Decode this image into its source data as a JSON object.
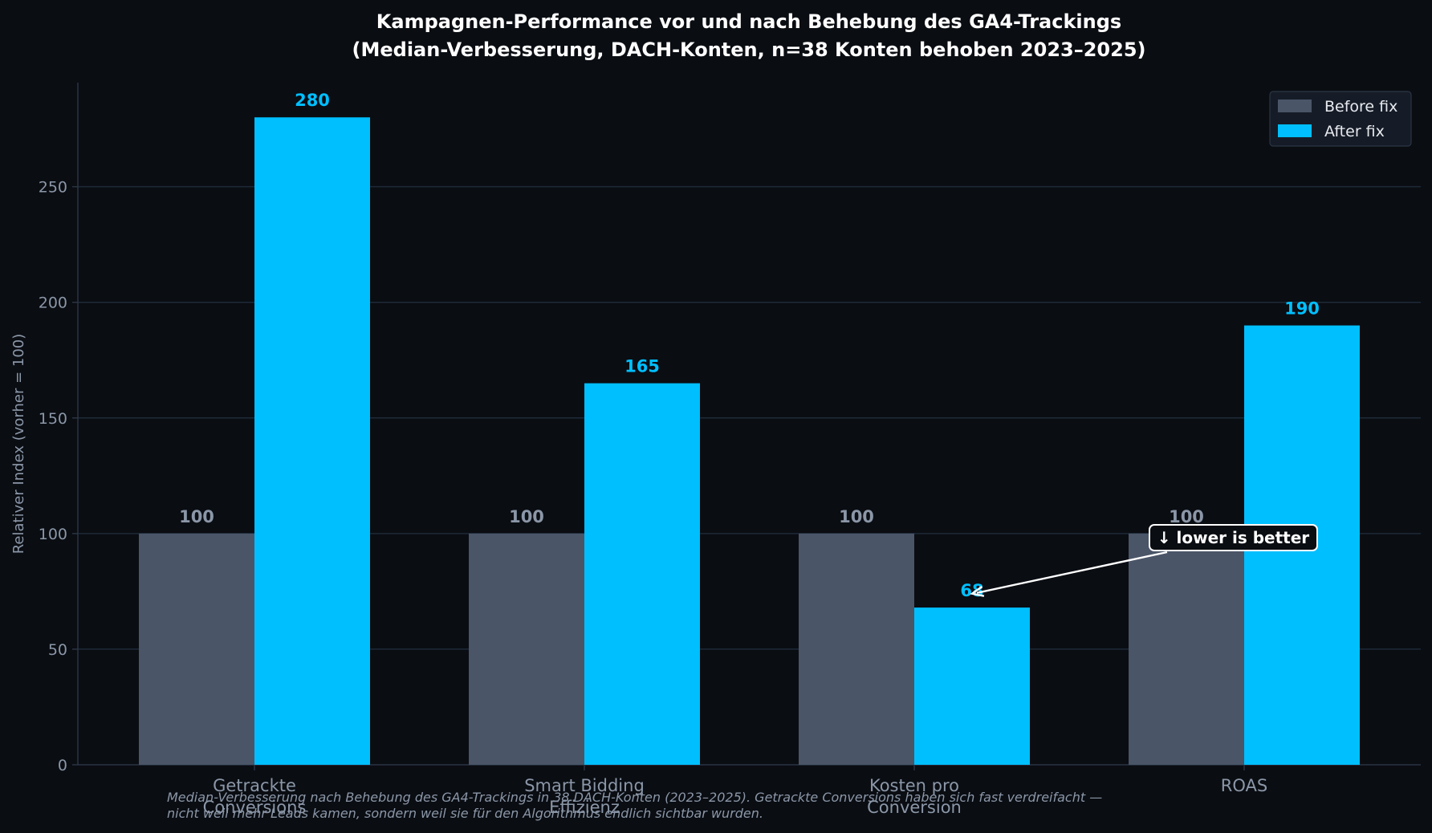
{
  "chart_data": {
    "type": "bar",
    "title_line1": "Kampagnen-Performance vor und nach Behebung des GA4-Trackings",
    "title_line2": "(Median-Verbesserung, DACH-Konten, n=38 Konten behoben 2023–2025)",
    "ylabel": "Relativer Index (vorher = 100)",
    "xlabel": "",
    "ylim": [
      0,
      295
    ],
    "yticks": [
      0,
      50,
      100,
      150,
      200,
      250
    ],
    "grid": true,
    "legend_position": "top-right",
    "categories": [
      [
        "Getrackte",
        "Conversions"
      ],
      [
        "Smart Bidding",
        "Effizienz"
      ],
      [
        "Kosten pro",
        "Conversion"
      ],
      [
        "ROAS"
      ]
    ],
    "series": [
      {
        "name": "Before fix",
        "color": "#4a5568",
        "label_color": "#8b97a8",
        "values": [
          100,
          100,
          100,
          100
        ]
      },
      {
        "name": "After fix",
        "color": "#00bfff",
        "label_color": "#00bfff",
        "values": [
          280,
          165,
          68,
          190
        ]
      }
    ],
    "annotation": {
      "text": "↓ lower is better",
      "target_category_index": 2,
      "target_value": 74
    },
    "caption_line1": "Median-Verbesserung nach Behebung des GA4-Trackings in 38 DACH-Konten (2023–2025). Getrackte Conversions haben sich fast verdreifacht —",
    "caption_line2": "nicht weil mehr Leads kamen, sondern weil sie für den Algorithmus endlich sichtbar wurden."
  },
  "colors": {
    "background": "#0a0d12",
    "axis": "#2a3544",
    "grid": "#1e2a38",
    "tick_text": "#8b97a8",
    "title": "#ffffff",
    "legend_bg": "#161c27",
    "legend_border": "#2a3544",
    "legend_text": "#e6e9ee",
    "annotation_bg": "#0a0d12",
    "annotation_border": "#ffffff",
    "caption": "#8b97a8"
  }
}
